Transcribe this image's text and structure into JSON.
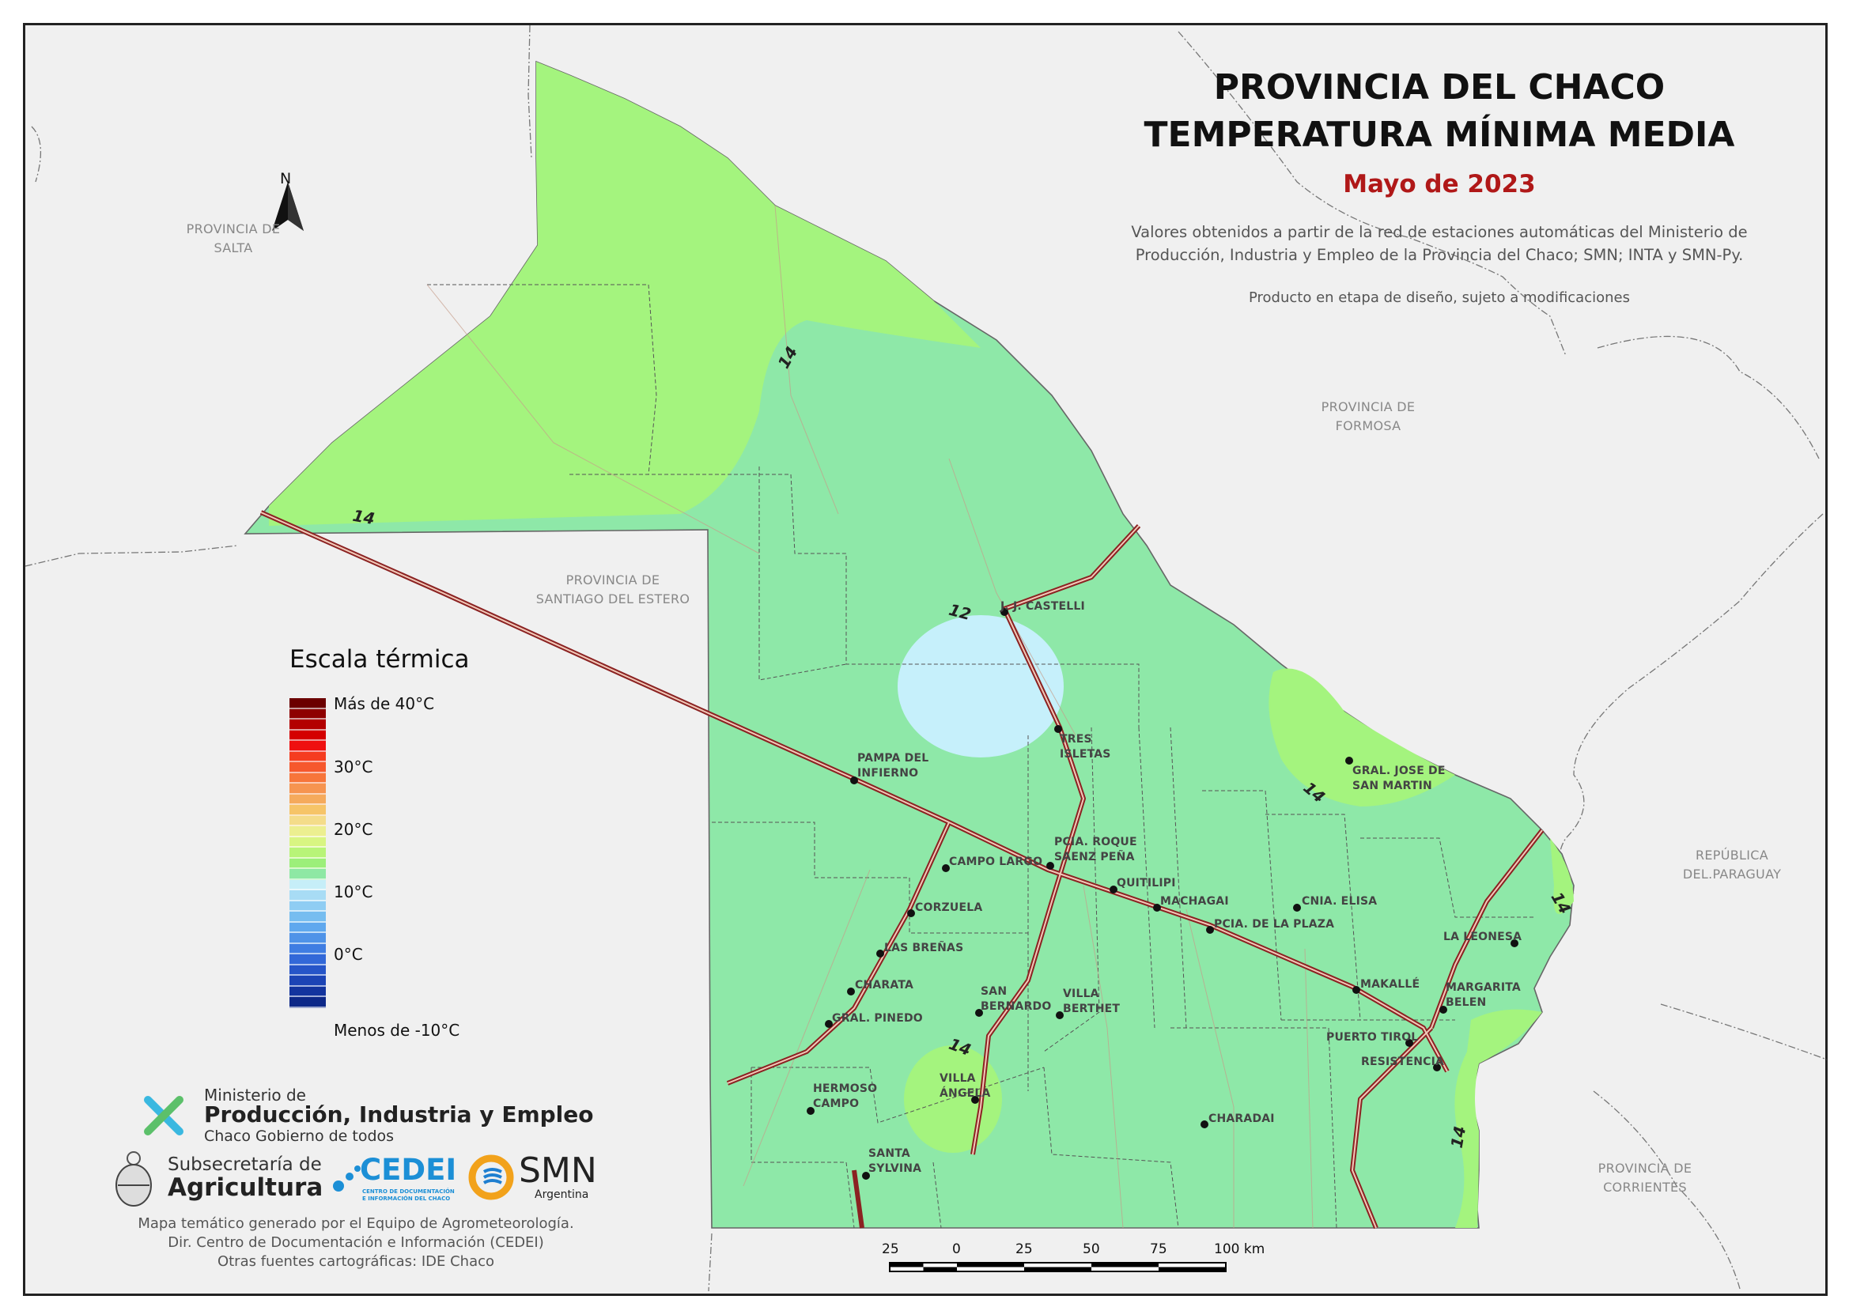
{
  "title": {
    "line1": "PROVINCIA DEL CHACO",
    "line2": "TEMPERATURA MÍNIMA MEDIA",
    "period": "Mayo de 2023"
  },
  "description": {
    "line1": "Valores obtenidos a partir de la red de estaciones automáticas del Ministerio de",
    "line2": "Producción, Industria y Empleo de la Provincia del Chaco; SMN; INTA y SMN-Py.",
    "note": "Producto en etapa de diseño, sujeto a modificaciones"
  },
  "north_arrow": {
    "label": "N"
  },
  "regions": {
    "salta": [
      "PROVINCIA DE",
      "SALTA"
    ],
    "formosa": [
      "PROVINCIA DE",
      "FORMOSA"
    ],
    "santiago": [
      "PROVINCIA DE",
      "SANTIAGO DEL ESTERO"
    ],
    "paraguay": [
      "REPÚBLICA",
      "DEL.PARAGUAY"
    ],
    "corrientes": [
      "PROVINCIA DE",
      "CORRIENTES"
    ]
  },
  "cities": [
    {
      "name": "J. J. CASTELLI"
    },
    {
      "name": "TRES ISLETAS"
    },
    {
      "name": "PAMPA DEL INFIERNO"
    },
    {
      "name": "GRAL. JOSE DE SAN MARTIN"
    },
    {
      "name": "PCIA. ROQUE SAENZ PEÑA"
    },
    {
      "name": "CAMPO LARGO"
    },
    {
      "name": "QUITILIPI"
    },
    {
      "name": "MACHAGAI"
    },
    {
      "name": "CNIA. ELISA"
    },
    {
      "name": "CORZUELA"
    },
    {
      "name": "PCIA. DE LA PLAZA"
    },
    {
      "name": "LA LEONESA"
    },
    {
      "name": "LAS BREÑAS"
    },
    {
      "name": "MAKALLÉ"
    },
    {
      "name": "MARGARITA BELEN"
    },
    {
      "name": "CHARATA"
    },
    {
      "name": "SAN BERNARDO"
    },
    {
      "name": "VILLA BERTHET"
    },
    {
      "name": "GRAL. PINEDO"
    },
    {
      "name": "PUERTO TIROL"
    },
    {
      "name": "RESISTENCIA"
    },
    {
      "name": "VILLA ÁNGELA"
    },
    {
      "name": "HERMOSO CAMPO"
    },
    {
      "name": "CHARADAI"
    },
    {
      "name": "SANTA SYLVINA"
    }
  ],
  "isolines": [
    "14",
    "14",
    "12",
    "14",
    "14",
    "14",
    "14"
  ],
  "legend": {
    "title": "Escala térmica",
    "labels": [
      "Más de 40°C",
      "30°C",
      "20°C",
      "10°C",
      "0°C",
      "Menos de -10°C"
    ],
    "colors": [
      "#6b0000",
      "#8e0000",
      "#b30000",
      "#d40000",
      "#ef1010",
      "#f53c20",
      "#f6582d",
      "#f7753a",
      "#f69450",
      "#f5aa5c",
      "#f6c468",
      "#f4dc8a",
      "#ecef90",
      "#d8f582",
      "#b8f478",
      "#9cef7a",
      "#8ee8a4",
      "#c6eef8",
      "#a8dcf5",
      "#8fcdf3",
      "#76bdf0",
      "#5fa8ee",
      "#4f93e8",
      "#3f7de2",
      "#3268d8",
      "#2655c8",
      "#1c44b5",
      "#13349e",
      "#0d2888"
    ]
  },
  "map_colors": {
    "zone_above_14": "#a4f47e",
    "zone_12_14": "#8ee8a8",
    "zone_below_12": "#c6f0fb",
    "background": "#f0f0f0",
    "road": "#8b2222"
  },
  "institutions": {
    "ministry_line1": "Ministerio de",
    "ministry_line2": "Producción, Industria y Empleo",
    "ministry_line3": "Chaco Gobierno de todos",
    "sub_line1": "Subsecretaría de",
    "sub_line2": "Agricultura",
    "cedei": "CEDEI",
    "cedei_sub1": "CENTRO DE DOCUMENTACIÓN",
    "cedei_sub2": "E INFORMACIÓN DEL CHACO",
    "smn": "SMN",
    "smn_sub": "Argentina"
  },
  "credits": {
    "line1": "Mapa temático generado por el Equipo de Agrometeorología.",
    "line2": "Dir. Centro de Documentación e Información (CEDEI)",
    "line3": "Otras fuentes cartográficas: IDE Chaco"
  },
  "scale_bar": {
    "labels": [
      "25",
      "0",
      "25",
      "50",
      "75",
      "100 km"
    ]
  }
}
